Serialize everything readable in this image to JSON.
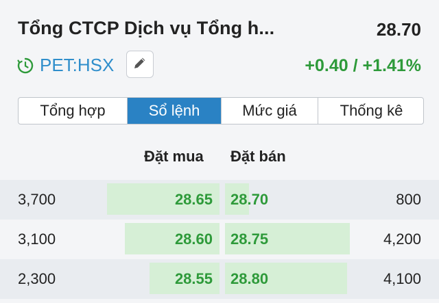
{
  "header": {
    "company_name": "Tổng CTCP Dịch vụ Tổng h...",
    "last_price": "28.70"
  },
  "ticker": {
    "symbol": "PET:HSX",
    "change_text": "+0.40 / +1.41%",
    "icons": {
      "status": "clock-icon",
      "edit": "pencil-icon"
    }
  },
  "tabs": [
    {
      "label": "Tổng hợp",
      "active": false
    },
    {
      "label": "Sổ lệnh",
      "active": true
    },
    {
      "label": "Mức giá",
      "active": false
    },
    {
      "label": "Thống kê",
      "active": false
    }
  ],
  "orderbook": {
    "buy_header": "Đặt mua",
    "sell_header": "Đặt bán",
    "rows": [
      {
        "buy_volume": "3,700",
        "buy_price": "28.65",
        "sell_price": "28.70",
        "sell_volume": "800",
        "buy_bar_fraction": 1.0,
        "sell_bar_fraction": 0.19
      },
      {
        "buy_volume": "3,100",
        "buy_price": "28.60",
        "sell_price": "28.75",
        "sell_volume": "4,200",
        "buy_bar_fraction": 0.84,
        "sell_bar_fraction": 1.0
      },
      {
        "buy_volume": "2,300",
        "buy_price": "28.55",
        "sell_price": "28.80",
        "sell_volume": "4,100",
        "buy_bar_fraction": 0.62,
        "sell_bar_fraction": 0.98
      }
    ]
  },
  "colors": {
    "up_green": "#2e9a3a",
    "bar_green": "#d6efd6",
    "accent_blue": "#2a82c4",
    "ticker_blue": "#2f8ecb"
  }
}
